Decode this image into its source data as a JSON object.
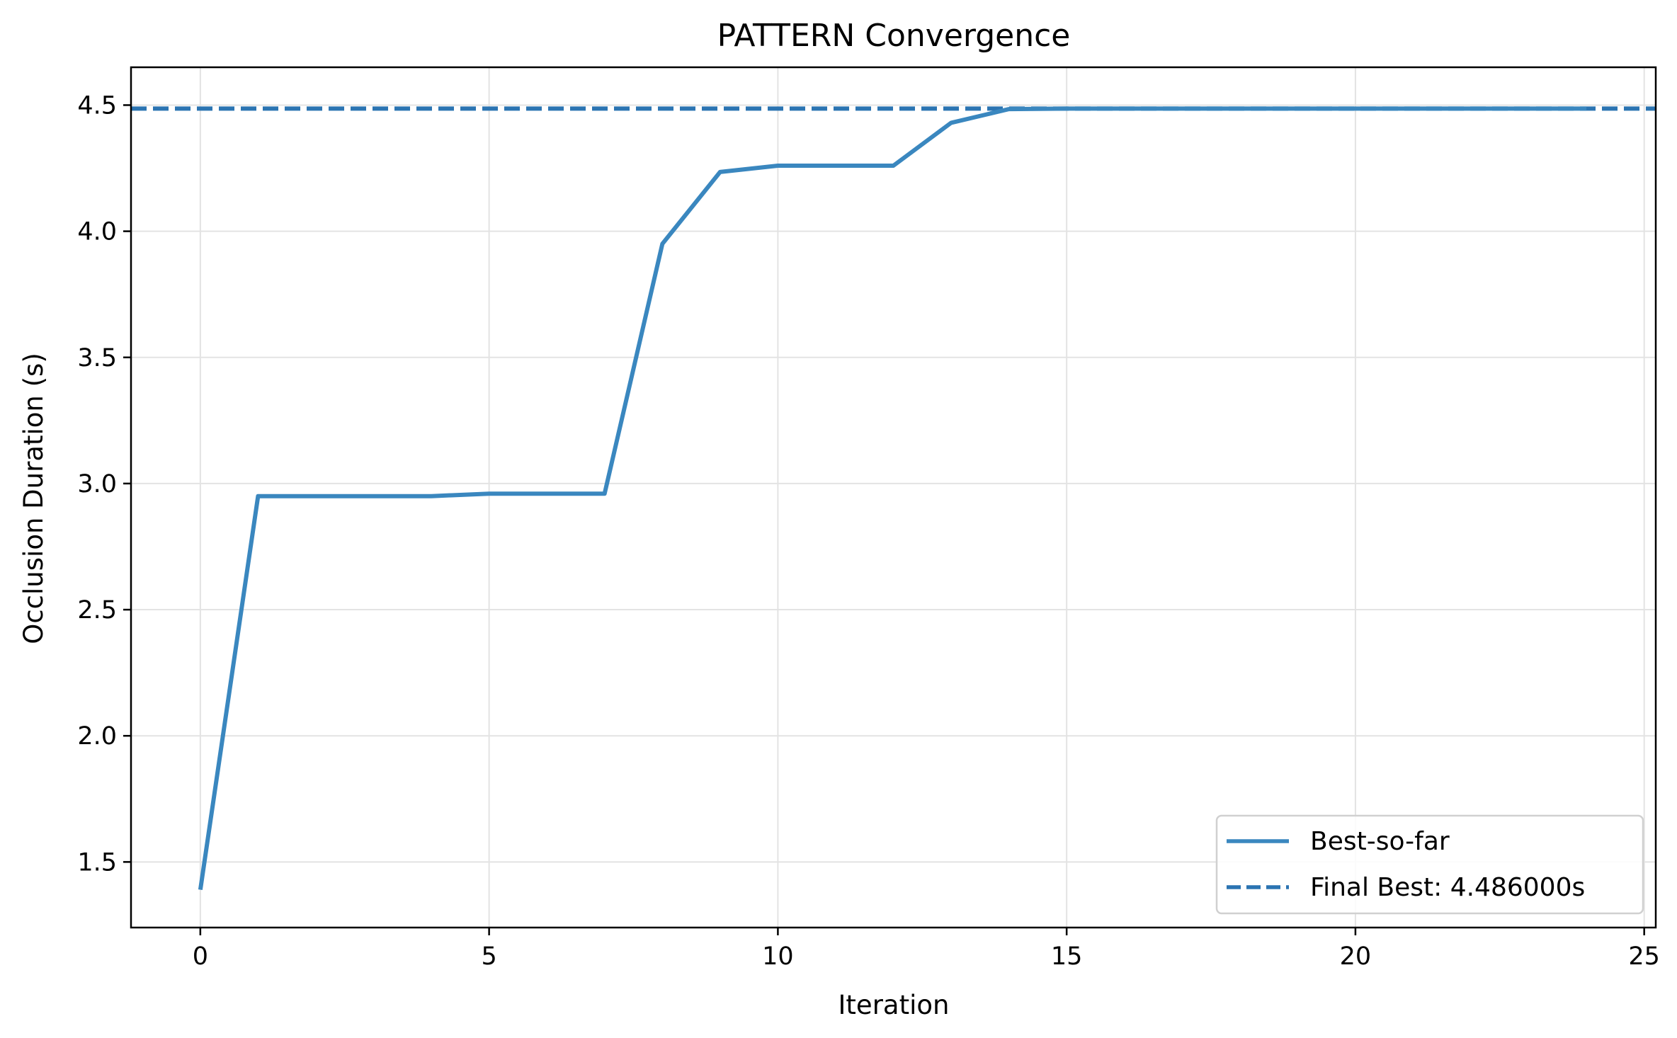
{
  "chart_data": {
    "type": "line",
    "title": "PATTERN Convergence",
    "xlabel": "Iteration",
    "ylabel": "Occlusion Duration (s)",
    "xlim": [
      -1.2,
      25.2
    ],
    "ylim": [
      1.24,
      4.65
    ],
    "xticks": [
      0,
      5,
      10,
      15,
      20,
      25
    ],
    "yticks": [
      1.5,
      2.0,
      2.5,
      3.0,
      3.5,
      4.0,
      4.5
    ],
    "xtick_labels": [
      "0",
      "5",
      "10",
      "15",
      "20",
      "25"
    ],
    "ytick_labels": [
      "1.5",
      "2.0",
      "2.5",
      "3.0",
      "3.5",
      "4.0",
      "4.5"
    ],
    "grid": true,
    "legend_position": "lower right",
    "series": [
      {
        "name": "Best-so-far",
        "style": "solid",
        "color": "#3a87bf",
        "x": [
          0,
          1,
          2,
          3,
          4,
          5,
          6,
          7,
          8,
          9,
          10,
          11,
          12,
          13,
          14,
          15,
          16,
          17,
          18,
          19,
          20,
          21,
          22,
          23,
          24
        ],
        "y": [
          1.39,
          2.95,
          2.95,
          2.95,
          2.95,
          2.96,
          2.96,
          2.96,
          3.95,
          4.235,
          4.26,
          4.26,
          4.26,
          4.43,
          4.484,
          4.486,
          4.486,
          4.486,
          4.486,
          4.486,
          4.486,
          4.486,
          4.486,
          4.486,
          4.486
        ]
      },
      {
        "name": "Final Best: 4.486000s",
        "style": "dashed",
        "color": "#2b74b2",
        "y": 4.486
      }
    ]
  }
}
